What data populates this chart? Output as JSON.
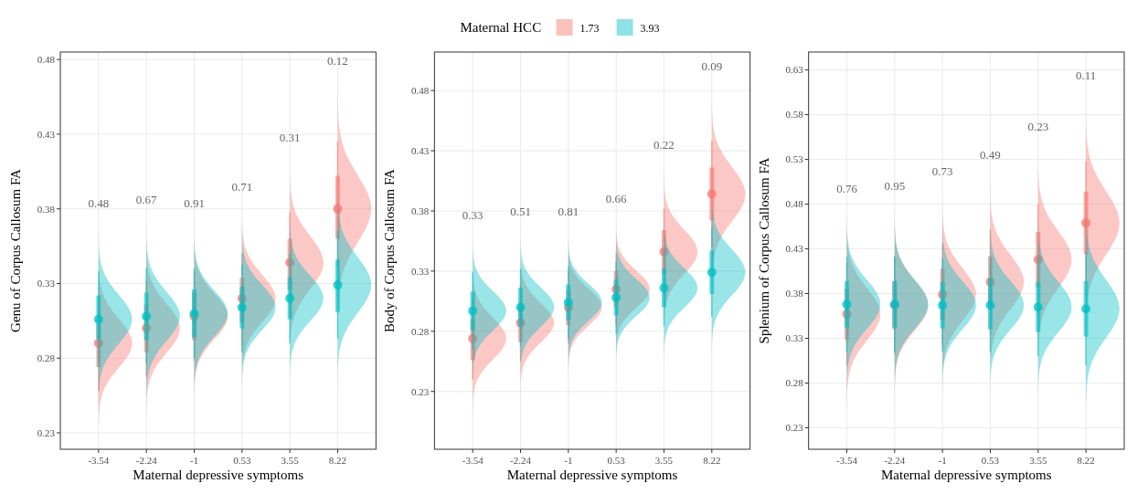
{
  "chart_data": [
    {
      "type": "box",
      "xlabel": "Maternal depressive symptoms",
      "ylabel": "Genu of Corpus Callosum FA",
      "legend_title": "Maternal HCC",
      "legend": "top",
      "grid": true,
      "categories": [
        "-3.54",
        "-2.24",
        "-1",
        "0.53",
        "3.55",
        "8.22"
      ],
      "ylim": [
        0.219,
        0.485
      ],
      "yticks": [
        0.23,
        0.28,
        0.33,
        0.38,
        0.43,
        0.48
      ],
      "series": [
        {
          "name": "1.73",
          "color": "#f8766d",
          "boxes": [
            {
              "low": 0.258,
              "q1": 0.274,
              "median": 0.29,
              "q3": 0.303,
              "high": 0.322
            },
            {
              "low": 0.268,
              "q1": 0.284,
              "median": 0.3,
              "q3": 0.316,
              "high": 0.332
            },
            {
              "low": 0.278,
              "q1": 0.292,
              "median": 0.308,
              "q3": 0.324,
              "high": 0.338
            },
            {
              "low": 0.288,
              "q1": 0.304,
              "median": 0.32,
              "q3": 0.334,
              "high": 0.35
            },
            {
              "low": 0.308,
              "q1": 0.326,
              "median": 0.344,
              "q3": 0.36,
              "high": 0.378
            },
            {
              "low": 0.338,
              "q1": 0.36,
              "median": 0.38,
              "q3": 0.402,
              "high": 0.425
            }
          ]
        },
        {
          "name": "3.93",
          "color": "#00bfc4",
          "boxes": [
            {
              "low": 0.274,
              "q1": 0.293,
              "median": 0.306,
              "q3": 0.322,
              "high": 0.338
            },
            {
              "low": 0.276,
              "q1": 0.292,
              "median": 0.308,
              "q3": 0.324,
              "high": 0.34
            },
            {
              "low": 0.28,
              "q1": 0.294,
              "median": 0.31,
              "q3": 0.326,
              "high": 0.34
            },
            {
              "low": 0.284,
              "q1": 0.3,
              "median": 0.314,
              "q3": 0.328,
              "high": 0.343
            },
            {
              "low": 0.29,
              "q1": 0.306,
              "median": 0.32,
              "q3": 0.334,
              "high": 0.35
            },
            {
              "low": 0.293,
              "q1": 0.311,
              "median": 0.329,
              "q3": 0.346,
              "high": 0.365
            }
          ]
        }
      ],
      "annotations": [
        "0.48",
        "0.67",
        "0.91",
        "0.71",
        "0.31",
        "0.12"
      ]
    },
    {
      "type": "box",
      "xlabel": "Maternal depressive symptoms",
      "ylabel": "Body of Corpus Callosum FA",
      "grid": true,
      "categories": [
        "-3.54",
        "-2.24",
        "-1",
        "0.53",
        "3.55",
        "8.22"
      ],
      "ylim": [
        0.182,
        0.512
      ],
      "yticks": [
        0.23,
        0.28,
        0.33,
        0.38,
        0.43,
        0.48
      ],
      "series": [
        {
          "color": "#f8766d",
          "boxes": [
            {
              "low": 0.24,
              "q1": 0.256,
              "median": 0.274,
              "q3": 0.29,
              "high": 0.308
            },
            {
              "low": 0.255,
              "q1": 0.271,
              "median": 0.287,
              "q3": 0.303,
              "high": 0.319
            },
            {
              "low": 0.27,
              "q1": 0.285,
              "median": 0.3,
              "q3": 0.315,
              "high": 0.33
            },
            {
              "low": 0.285,
              "q1": 0.3,
              "median": 0.315,
              "q3": 0.33,
              "high": 0.345
            },
            {
              "low": 0.31,
              "q1": 0.328,
              "median": 0.346,
              "q3": 0.364,
              "high": 0.382
            },
            {
              "low": 0.35,
              "q1": 0.372,
              "median": 0.394,
              "q3": 0.416,
              "high": 0.438
            }
          ]
        },
        {
          "color": "#00bfc4",
          "boxes": [
            {
              "low": 0.265,
              "q1": 0.281,
              "median": 0.297,
              "q3": 0.313,
              "high": 0.329
            },
            {
              "low": 0.268,
              "q1": 0.284,
              "median": 0.3,
              "q3": 0.316,
              "high": 0.332
            },
            {
              "low": 0.274,
              "q1": 0.289,
              "median": 0.304,
              "q3": 0.319,
              "high": 0.334
            },
            {
              "low": 0.278,
              "q1": 0.293,
              "median": 0.308,
              "q3": 0.323,
              "high": 0.338
            },
            {
              "low": 0.284,
              "q1": 0.3,
              "median": 0.316,
              "q3": 0.332,
              "high": 0.348
            },
            {
              "low": 0.292,
              "q1": 0.311,
              "median": 0.329,
              "q3": 0.347,
              "high": 0.366
            }
          ]
        }
      ],
      "annotations": [
        "0.33",
        "0.51",
        "0.81",
        "0.66",
        "0.22",
        "0.09"
      ]
    },
    {
      "type": "box",
      "xlabel": "Maternal depressive symptoms",
      "ylabel": "Splenium of Corpus Callosum FA",
      "grid": true,
      "categories": [
        "-3.54",
        "-2.24",
        "-1",
        "0.53",
        "3.55",
        "8.22"
      ],
      "ylim": [
        0.206,
        0.65
      ],
      "yticks": [
        0.23,
        0.28,
        0.33,
        0.38,
        0.43,
        0.48,
        0.53,
        0.58,
        0.63
      ],
      "series": [
        {
          "color": "#f8766d",
          "boxes": [
            {
              "low": 0.3,
              "q1": 0.328,
              "median": 0.357,
              "q3": 0.386,
              "high": 0.414
            },
            {
              "low": 0.312,
              "q1": 0.34,
              "median": 0.367,
              "q3": 0.394,
              "high": 0.422
            },
            {
              "low": 0.322,
              "q1": 0.35,
              "median": 0.379,
              "q3": 0.408,
              "high": 0.436
            },
            {
              "low": 0.334,
              "q1": 0.364,
              "median": 0.393,
              "q3": 0.422,
              "high": 0.452
            },
            {
              "low": 0.356,
              "q1": 0.387,
              "median": 0.418,
              "q3": 0.449,
              "high": 0.48
            },
            {
              "low": 0.39,
              "q1": 0.424,
              "median": 0.459,
              "q3": 0.494,
              "high": 0.528
            }
          ]
        },
        {
          "color": "#00bfc4",
          "boxes": [
            {
              "low": 0.315,
              "q1": 0.342,
              "median": 0.368,
              "q3": 0.394,
              "high": 0.421
            },
            {
              "low": 0.315,
              "q1": 0.342,
              "median": 0.368,
              "q3": 0.394,
              "high": 0.421
            },
            {
              "low": 0.315,
              "q1": 0.341,
              "median": 0.367,
              "q3": 0.393,
              "high": 0.419
            },
            {
              "low": 0.314,
              "q1": 0.34,
              "median": 0.367,
              "q3": 0.397,
              "high": 0.42
            },
            {
              "low": 0.31,
              "q1": 0.337,
              "median": 0.365,
              "q3": 0.393,
              "high": 0.42
            },
            {
              "low": 0.3,
              "q1": 0.332,
              "median": 0.363,
              "q3": 0.394,
              "high": 0.426
            }
          ]
        }
      ],
      "annotations": [
        "0.76",
        "0.95",
        "0.73",
        "0.49",
        "0.23",
        "0.11"
      ]
    }
  ]
}
